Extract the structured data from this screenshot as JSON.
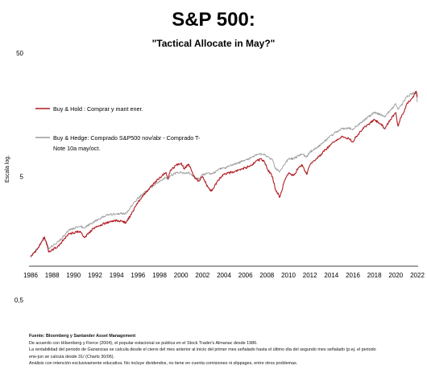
{
  "title": "S&P 500:",
  "subtitle": "\"Tactical Allocate in May?\"",
  "chart_data": {
    "type": "line",
    "ylabel": "Escala log.",
    "y_scale": "log",
    "ylim": [
      0.5,
      50
    ],
    "y_ticks": [
      "0,5",
      "5",
      "50"
    ],
    "y_tick_values": [
      0.5,
      5,
      50
    ],
    "x_ticks": [
      "1986",
      "1988",
      "1990",
      "1992",
      "1994",
      "1996",
      "1998",
      "2000",
      "2002",
      "2004",
      "2006",
      "2008",
      "2010",
      "2012",
      "2014",
      "2016",
      "2018",
      "2020",
      "2022"
    ],
    "xlim": [
      1986,
      2022
    ],
    "grid": false,
    "legend_position": "top-left",
    "series": [
      {
        "name": "Buy & Hold : Comprar y mant ener.",
        "color": "#b01c22",
        "x": [
          1986,
          1986.6,
          1987.3,
          1987.7,
          1987.9,
          1988.6,
          1989.5,
          1990.6,
          1991,
          1992,
          1993,
          1994,
          1994.9,
          1995.5,
          1996,
          1997,
          1998,
          1998.6,
          1998.8,
          1999,
          1999.6,
          2000,
          2000.3,
          2000.7,
          2001,
          2001.3,
          2001.7,
          2002,
          2002.5,
          2002.8,
          2003,
          2003.5,
          2004,
          2005,
          2006,
          2006.5,
          2007,
          2007.5,
          2007.8,
          2008,
          2008.5,
          2008.8,
          2009.2,
          2009.6,
          2010,
          2010.5,
          2011,
          2011.3,
          2011.7,
          2012,
          2013,
          2014,
          2015,
          2015.6,
          2016,
          2016.2,
          2017,
          2018,
          2018.8,
          2018.95,
          2019.5,
          2020,
          2020.2,
          2020.4,
          2020.8,
          2021,
          2021.5,
          2021.9,
          2022
        ],
        "values": [
          1.12,
          1.28,
          1.62,
          1.22,
          1.25,
          1.38,
          1.7,
          1.8,
          1.6,
          1.95,
          2.1,
          2.2,
          2.12,
          2.6,
          3.1,
          3.95,
          4.9,
          5.4,
          4.8,
          5.6,
          6.2,
          6.4,
          5.8,
          6.3,
          5.5,
          4.8,
          4.6,
          5.0,
          4.1,
          3.8,
          4.0,
          4.7,
          5.2,
          5.5,
          5.9,
          6.1,
          6.7,
          6.9,
          6.5,
          5.8,
          5.0,
          3.9,
          3.4,
          4.5,
          5.3,
          5.1,
          6.0,
          6.2,
          5.2,
          6.2,
          7.5,
          9.2,
          10.5,
          10.2,
          9.5,
          10.3,
          12.3,
          14.5,
          12.8,
          12.2,
          14.5,
          16.5,
          12.8,
          14.6,
          17.0,
          19.2,
          21.5,
          24.5,
          22.0
        ]
      },
      {
        "name": "Buy & Hedge: Comprado S&P500 nov/abr - Comprado T-Note 10a may/oct.",
        "color": "#9b9b9b",
        "x": [
          1986,
          1986.6,
          1987.3,
          1987.7,
          1987.9,
          1988.6,
          1989.5,
          1990.6,
          1991,
          1992,
          1993,
          1994,
          1994.9,
          1995.5,
          1996,
          1997,
          1998,
          1998.6,
          1998.8,
          1999,
          1999.6,
          2000,
          2000.3,
          2000.7,
          2001,
          2001.3,
          2001.7,
          2002,
          2002.5,
          2002.8,
          2003,
          2003.5,
          2004,
          2005,
          2006,
          2006.5,
          2007,
          2007.5,
          2007.8,
          2008,
          2008.5,
          2008.8,
          2009.2,
          2009.6,
          2010,
          2010.5,
          2011,
          2011.3,
          2011.7,
          2012,
          2013,
          2014,
          2015,
          2015.6,
          2016,
          2016.2,
          2017,
          2018,
          2018.8,
          2018.95,
          2019.5,
          2020,
          2020.2,
          2020.4,
          2020.8,
          2021,
          2021.5,
          2021.9,
          2022
        ],
        "values": [
          1.12,
          1.3,
          1.58,
          1.3,
          1.35,
          1.48,
          1.82,
          1.98,
          1.92,
          2.18,
          2.42,
          2.5,
          2.52,
          2.95,
          3.35,
          3.95,
          4.6,
          4.9,
          4.7,
          5.05,
          5.35,
          5.45,
          5.25,
          5.45,
          5.1,
          4.95,
          4.75,
          5.15,
          5.35,
          5.2,
          5.3,
          5.7,
          5.85,
          6.3,
          6.8,
          7.1,
          7.4,
          7.6,
          7.5,
          7.2,
          6.9,
          5.8,
          5.5,
          6.2,
          6.9,
          7.0,
          7.4,
          7.6,
          7.2,
          7.9,
          9.0,
          10.8,
          12.2,
          12.4,
          12.1,
          12.5,
          14.2,
          16.6,
          15.6,
          15.2,
          17.2,
          19.5,
          17.5,
          18.5,
          20.5,
          22.0,
          23.5,
          24.0,
          20.0
        ]
      }
    ]
  },
  "notes": [
    "Fuente: Bloomberg y Santander Asset Management",
    "De acuerdo con Hilsenberg y Fierce (2004), el popular estacional se publica en el Stock Trader's Almanac desde 1986.",
    "La rentabilidad del periodo de Ganancias se calcula desde el cierre del mes anterior al inicio del primer mes señalado hasta el último día del segundo mes señalado (p.ej. el periodo",
    "ene-jun se calcula desde 31/ (Charts 30/06).",
    "Análisis con intención exclusivamente educativa. No incluye dividendos, no tiene en cuenta comisiones ni slippages, entre otros problemas."
  ]
}
